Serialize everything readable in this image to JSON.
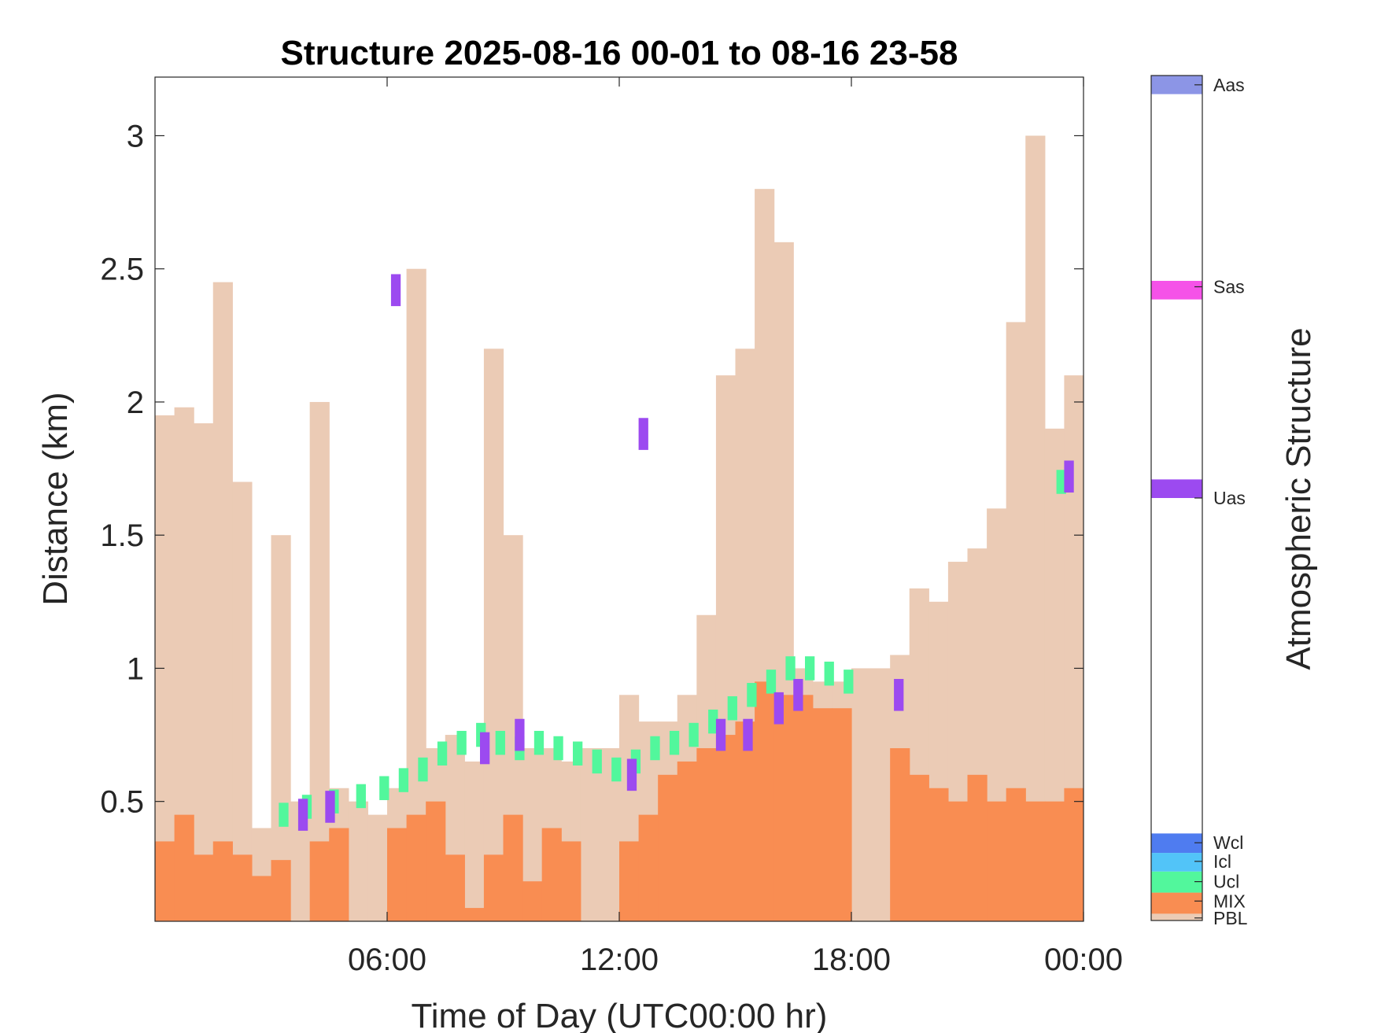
{
  "chart_data": {
    "type": "bar",
    "title": "Structure 2025-08-16 00-01 to 08-16 23-58",
    "xlabel": "Time of Day (UTC00:00 hr)",
    "ylabel": "Distance (km)",
    "xlim": [
      0,
      24
    ],
    "ylim": [
      0.05,
      3.22
    ],
    "x_ticks": [
      6,
      12,
      18,
      24
    ],
    "x_tick_labels": [
      "06:00",
      "12:00",
      "18:00",
      "00:00"
    ],
    "y_ticks": [
      0.5,
      1,
      1.5,
      2,
      2.5,
      3
    ],
    "y_tick_labels": [
      "0.5",
      "1",
      "1.5",
      "2",
      "2.5",
      "3"
    ],
    "grid": false,
    "colorbar": {
      "label": "Atmospheric Structure",
      "classes": [
        {
          "name": "PBL",
          "color": "#ebcbb5"
        },
        {
          "name": "MIX",
          "color": "#f98d52"
        },
        {
          "name": "Ucl",
          "color": "#52f79c"
        },
        {
          "name": "Icl",
          "color": "#52c4f8"
        },
        {
          "name": "Wcl",
          "color": "#4f7cf0"
        },
        {
          "name": "Uas",
          "color": "#9c4af0"
        },
        {
          "name": "Sas",
          "color": "#f552e8"
        },
        {
          "name": "Aas",
          "color": "#8c95e6"
        }
      ]
    },
    "series": [
      {
        "name": "PBL",
        "x": [
          0.0,
          0.5,
          1.0,
          1.5,
          2.0,
          2.5,
          3.0,
          3.5,
          4.0,
          4.5,
          5.0,
          5.5,
          6.0,
          6.5,
          7.0,
          7.5,
          8.0,
          8.5,
          9.0,
          9.5,
          10.0,
          10.5,
          11.0,
          11.5,
          12.0,
          12.5,
          13.0,
          13.5,
          14.0,
          14.5,
          15.0,
          15.5,
          16.0,
          16.5,
          17.0,
          17.5,
          18.0,
          18.5,
          19.0,
          19.5,
          20.0,
          20.5,
          21.0,
          21.5,
          22.0,
          22.5,
          23.0,
          23.5
        ],
        "values": [
          1.95,
          1.98,
          1.92,
          2.45,
          1.7,
          0.4,
          1.5,
          0.5,
          2.0,
          0.55,
          0.5,
          0.45,
          0.55,
          2.5,
          0.7,
          0.75,
          0.65,
          2.2,
          1.5,
          0.7,
          0.7,
          0.65,
          0.7,
          0.7,
          0.9,
          0.8,
          0.8,
          0.9,
          1.2,
          2.1,
          2.2,
          2.8,
          2.6,
          1.0,
          0.95,
          0.95,
          1.0,
          1.0,
          1.05,
          1.3,
          1.25,
          1.4,
          1.45,
          1.6,
          2.3,
          3.0,
          1.9,
          2.1
        ]
      },
      {
        "name": "MIX",
        "x": [
          0.0,
          0.5,
          1.0,
          1.5,
          2.0,
          2.5,
          3.0,
          3.5,
          4.0,
          4.5,
          5.0,
          5.5,
          6.0,
          6.5,
          7.0,
          7.5,
          8.0,
          8.5,
          9.0,
          9.5,
          10.0,
          10.5,
          11.0,
          11.5,
          12.0,
          12.5,
          13.0,
          13.5,
          14.0,
          14.5,
          15.0,
          15.5,
          16.0,
          16.5,
          17.0,
          17.5,
          18.0,
          18.5,
          19.0,
          19.5,
          20.0,
          20.5,
          21.0,
          21.5,
          22.0,
          22.5,
          23.0,
          23.5
        ],
        "values": [
          0.35,
          0.45,
          0.3,
          0.35,
          0.3,
          0.22,
          0.28,
          0.05,
          0.35,
          0.4,
          0.05,
          0.05,
          0.4,
          0.45,
          0.5,
          0.3,
          0.1,
          0.3,
          0.45,
          0.2,
          0.4,
          0.35,
          0.05,
          0.05,
          0.35,
          0.45,
          0.6,
          0.65,
          0.7,
          0.75,
          0.8,
          0.95,
          0.9,
          0.9,
          0.85,
          0.85,
          0.05,
          0.05,
          0.7,
          0.6,
          0.55,
          0.5,
          0.6,
          0.5,
          0.55,
          0.5,
          0.5,
          0.55
        ]
      },
      {
        "name": "Ucl",
        "x": [
          3.2,
          3.8,
          4.5,
          5.2,
          5.8,
          6.3,
          6.8,
          7.3,
          7.8,
          8.3,
          8.8,
          9.3,
          9.8,
          10.3,
          10.8,
          11.3,
          11.8,
          12.3,
          12.8,
          13.3,
          13.8,
          14.3,
          14.8,
          15.3,
          15.8,
          16.3,
          16.8,
          17.3,
          17.8,
          23.3
        ],
        "values": [
          0.45,
          0.48,
          0.5,
          0.52,
          0.55,
          0.58,
          0.62,
          0.68,
          0.72,
          0.75,
          0.72,
          0.7,
          0.72,
          0.7,
          0.68,
          0.65,
          0.62,
          0.65,
          0.7,
          0.72,
          0.75,
          0.8,
          0.85,
          0.9,
          0.95,
          1.0,
          1.0,
          0.98,
          0.95,
          1.7
        ]
      },
      {
        "name": "Uas",
        "x": [
          3.7,
          4.4,
          6.1,
          8.4,
          9.3,
          12.2,
          12.5,
          14.5,
          15.2,
          16.0,
          16.5,
          19.1,
          23.5
        ],
        "values": [
          0.45,
          0.48,
          2.42,
          0.7,
          0.75,
          0.6,
          1.88,
          0.75,
          0.75,
          0.85,
          0.9,
          0.9,
          1.72
        ]
      }
    ]
  }
}
